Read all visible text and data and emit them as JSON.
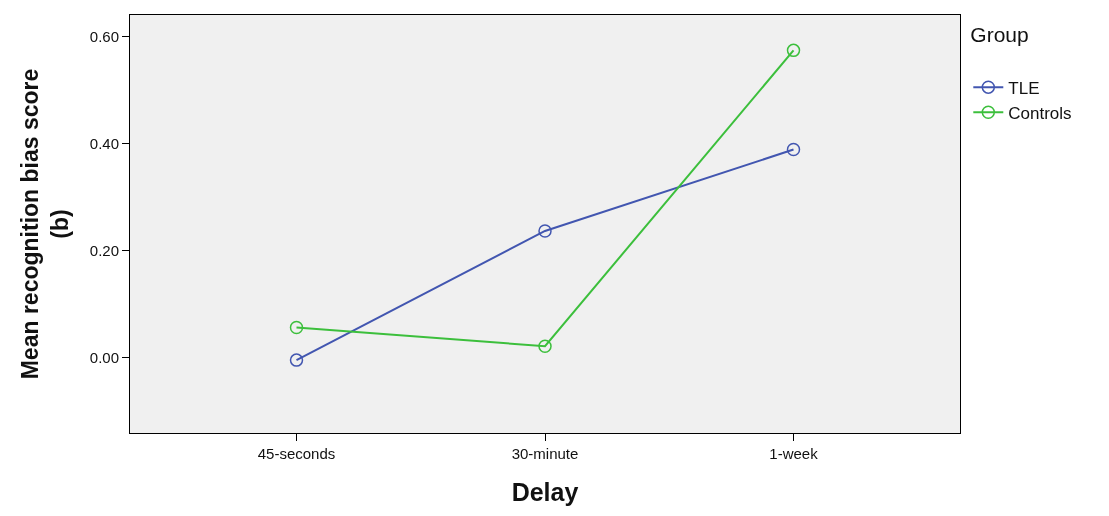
{
  "chart_data": {
    "type": "line",
    "xlabel": "Delay",
    "ylabel": "Mean recognition bias score (b)",
    "legend_title": "Group",
    "categories": [
      "45-seconds",
      "30-minute",
      "1-week"
    ],
    "series": [
      {
        "name": "TLE",
        "color": "#4256b0",
        "values": [
          -0.004,
          0.237,
          0.389
        ]
      },
      {
        "name": "Controls",
        "color": "#3cbf3c",
        "values": [
          0.057,
          0.022,
          0.574
        ]
      }
    ],
    "ylim": [
      -0.14,
      0.64
    ],
    "yticks": [
      {
        "value": 0,
        "label": "0.00"
      },
      {
        "value": 0.2,
        "label": "0.20"
      },
      {
        "value": 0.4,
        "label": "0.40"
      },
      {
        "value": 0.6,
        "label": "0.60"
      }
    ],
    "grid": false,
    "legend": "top right",
    "marker": "circle",
    "line_style": "solid"
  }
}
